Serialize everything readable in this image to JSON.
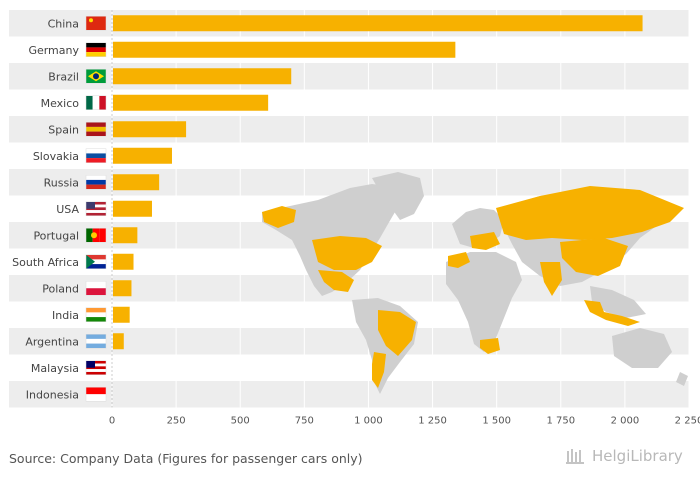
{
  "chart_data": {
    "type": "bar",
    "orientation": "horizontal",
    "categories": [
      "China",
      "Germany",
      "Brazil",
      "Mexico",
      "Spain",
      "Slovakia",
      "Russia",
      "USA",
      "Portugal",
      "South Africa",
      "Poland",
      "India",
      "Argentina",
      "Malaysia",
      "Indonesia"
    ],
    "values": [
      2065,
      1335,
      695,
      605,
      285,
      230,
      180,
      152,
      95,
      80,
      72,
      65,
      42,
      0,
      0
    ],
    "xlim": [
      0,
      2250
    ],
    "xticks": [
      0,
      250,
      500,
      750,
      1000,
      1250,
      1500,
      1750,
      2000,
      2250
    ],
    "xtick_labels": [
      "0",
      "250",
      "500",
      "750",
      "1 000",
      "1 250",
      "1 500",
      "1 750",
      "2 000",
      "2 250"
    ],
    "bar_color": "#F7B100",
    "grid": true,
    "legend": "none",
    "highlighted_countries_on_map": [
      "China",
      "Germany",
      "Brazil",
      "Mexico",
      "Spain",
      "Slovakia",
      "Russia",
      "USA",
      "Portugal",
      "South Africa",
      "Poland",
      "India",
      "Argentina",
      "Malaysia",
      "Indonesia"
    ]
  },
  "colors": {
    "bar": "#F7B100",
    "band": "#EDEDED",
    "map_base": "#CFCFCF",
    "axis_text": "#555555"
  },
  "footer": {
    "source": "Source: Company Data (Figures for passenger cars only)",
    "logo_text": "HelgiLibrary"
  }
}
